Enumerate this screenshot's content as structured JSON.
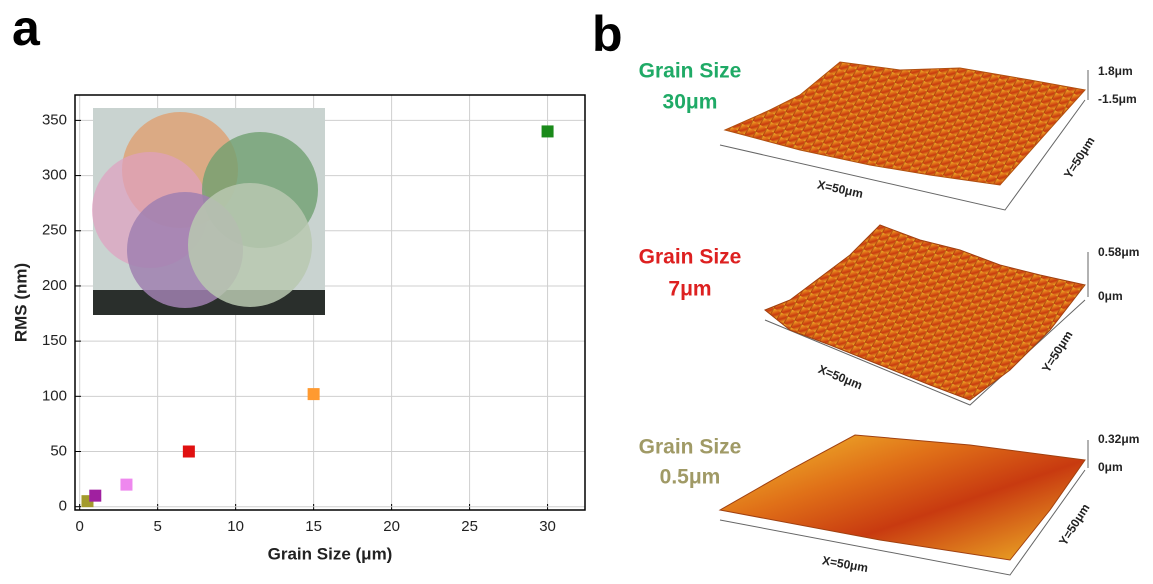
{
  "chart_data": {
    "type": "scatter",
    "x_label": "Grain Size (μm)",
    "y_label": "RMS (nm)",
    "x": [
      0.5,
      1,
      3,
      7,
      15,
      30
    ],
    "values": [
      5,
      10,
      20,
      50,
      102,
      340
    ],
    "colors": [
      "#a39a2c",
      "#a020a0",
      "#ee88ee",
      "#e01010",
      "#ff9a30",
      "#1a8a1a"
    ],
    "xlim": [
      -0.3,
      32.4
    ],
    "ylim": [
      -3,
      373
    ],
    "xticks": [
      0,
      5,
      10,
      15,
      20,
      25,
      30
    ],
    "yticks": [
      0,
      50,
      100,
      150,
      200,
      250,
      300,
      350
    ],
    "grid": true
  },
  "panels": {
    "a": "a",
    "b": "b"
  },
  "afm_images": [
    {
      "title": [
        "Grain Size",
        "30μm"
      ],
      "title_color": "#1faa66",
      "z_max": "1.8μm",
      "z_min": "-1.5μm",
      "x_label": "X=50μm",
      "y_label": "Y=50μm"
    },
    {
      "title": [
        "Grain Size",
        "7μm"
      ],
      "title_color": "#dd2020",
      "z_max": "0.58μm",
      "z_min": "0μm",
      "x_label": "X=50μm",
      "y_label": "Y=50μm"
    },
    {
      "title": [
        "Grain Size",
        "0.5μm"
      ],
      "title_color": "#a09a66",
      "z_max": "0.32μm",
      "z_min": "0μm",
      "x_label": "X=50μm",
      "y_label": "Y=50μm"
    }
  ]
}
